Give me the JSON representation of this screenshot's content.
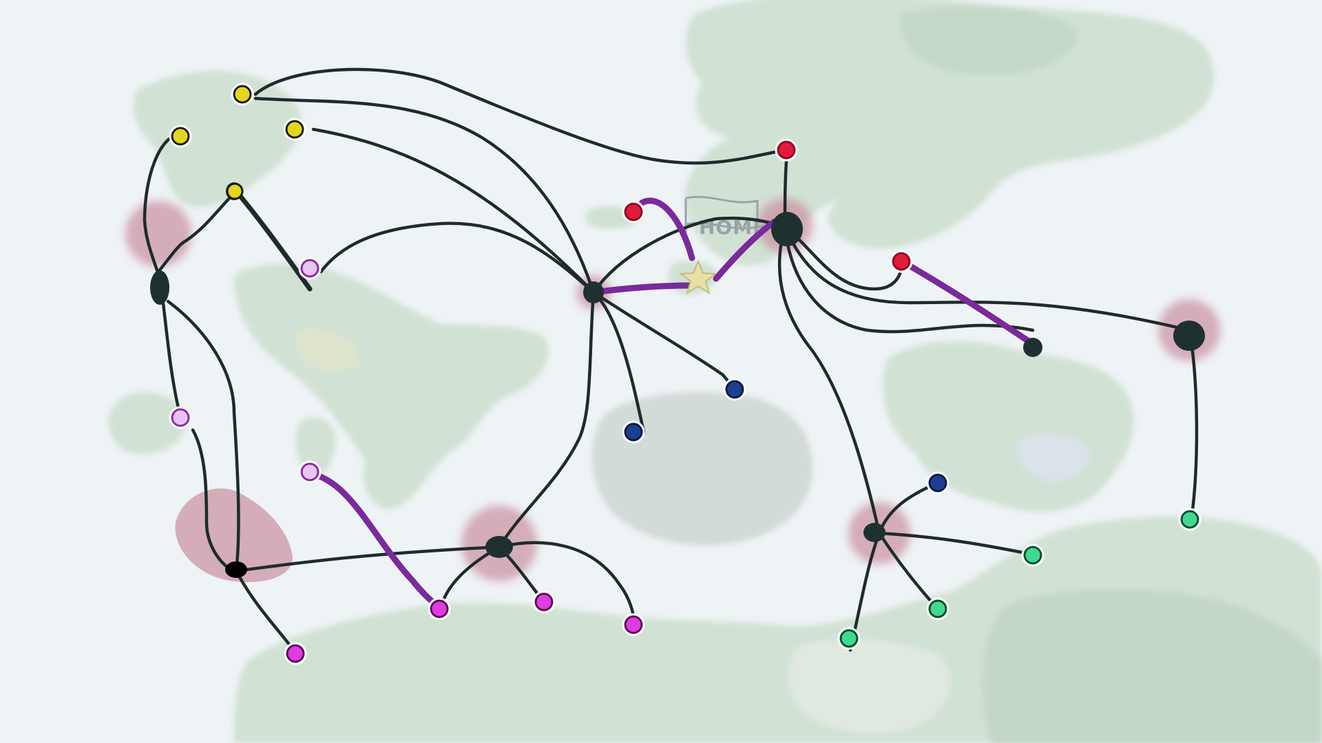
{
  "map": {
    "home_label": "HOME",
    "colors": {
      "water": "#eef3f5",
      "land": "#c9dccb",
      "land_dark": "#a9c6ad",
      "path": "#1f2b2b",
      "highlight_path": "#7a2a9a",
      "hub_glow": "#c98ea0",
      "yellow_node": "#e4d51e",
      "red_node": "#e21b3c",
      "blue_node": "#1c3f8f",
      "magenta_node": "#e23be0",
      "lilac_node": "#e9c4f0",
      "green_node": "#3fd98f"
    },
    "node_groups": [
      "yellow",
      "red",
      "blue",
      "magenta",
      "lilac",
      "green"
    ]
  }
}
